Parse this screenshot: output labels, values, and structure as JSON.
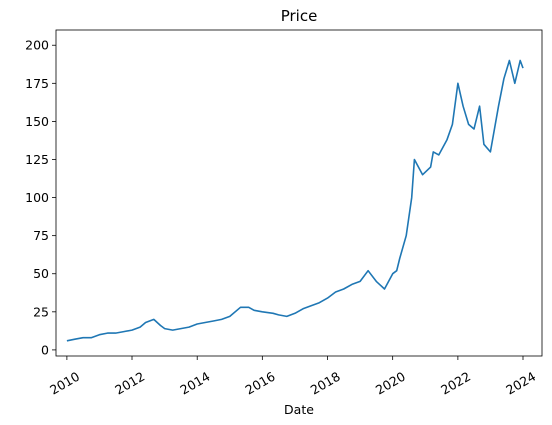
{
  "chart_data": {
    "type": "line",
    "title": "Price",
    "xlabel": "Date",
    "ylabel": "",
    "xlim": [
      "2009-09-01",
      "2024-08-01"
    ],
    "ylim": [
      -4,
      210
    ],
    "x_ticks": [
      "2010-01-01",
      "2012-01-01",
      "2014-01-01",
      "2016-01-01",
      "2018-01-01",
      "2020-01-01",
      "2022-01-01",
      "2024-01-01"
    ],
    "x_tick_labels": [
      "2010",
      "2012",
      "2014",
      "2016",
      "2018",
      "2020",
      "2022",
      "2024"
    ],
    "y_ticks": [
      0,
      25,
      50,
      75,
      100,
      125,
      150,
      175,
      200
    ],
    "y_tick_labels": [
      "0",
      "25",
      "50",
      "75",
      "100",
      "125",
      "150",
      "175",
      "200"
    ],
    "grid": false,
    "line_color": "#1f77b4",
    "series": [
      {
        "x": [
          "2010-01-01",
          "2010-04-01",
          "2010-07-01",
          "2010-10-01",
          "2011-01-01",
          "2011-04-01",
          "2011-07-01",
          "2011-10-01",
          "2012-01-01",
          "2012-04-01",
          "2012-06-01",
          "2012-09-01",
          "2012-11-15",
          "2013-01-01",
          "2013-04-01",
          "2013-07-01",
          "2013-10-01",
          "2014-01-01",
          "2014-04-01",
          "2014-07-01",
          "2014-10-01",
          "2015-01-01",
          "2015-05-01",
          "2015-08-01",
          "2015-10-01",
          "2016-01-01",
          "2016-05-01",
          "2016-07-01",
          "2016-10-01",
          "2017-01-01",
          "2017-04-01",
          "2017-07-01",
          "2017-10-01",
          "2018-01-01",
          "2018-04-01",
          "2018-07-01",
          "2018-10-01",
          "2019-01-01",
          "2019-04-01",
          "2019-07-01",
          "2019-10-01",
          "2020-01-01",
          "2020-02-15",
          "2020-03-20",
          "2020-06-01",
          "2020-08-01",
          "2020-09-01",
          "2020-12-01",
          "2021-03-01",
          "2021-04-01",
          "2021-06-01",
          "2021-09-01",
          "2021-11-01",
          "2022-01-01",
          "2022-03-01",
          "2022-05-01",
          "2022-07-01",
          "2022-09-01",
          "2022-10-20",
          "2023-01-01",
          "2023-04-01",
          "2023-06-01",
          "2023-08-01",
          "2023-10-01",
          "2023-12-01",
          "2024-01-01"
        ],
        "y": [
          6,
          7,
          8,
          8,
          10,
          11,
          11,
          12,
          13,
          15,
          18,
          20,
          16,
          14,
          13,
          14,
          15,
          17,
          18,
          19,
          20,
          22,
          28,
          28,
          26,
          25,
          24,
          23,
          22,
          24,
          27,
          29,
          31,
          34,
          38,
          40,
          43,
          45,
          52,
          45,
          40,
          50,
          52,
          60,
          75,
          100,
          125,
          115,
          120,
          130,
          128,
          138,
          148,
          175,
          160,
          148,
          145,
          160,
          135,
          130,
          160,
          178,
          190,
          175,
          190,
          185
        ]
      }
    ]
  }
}
